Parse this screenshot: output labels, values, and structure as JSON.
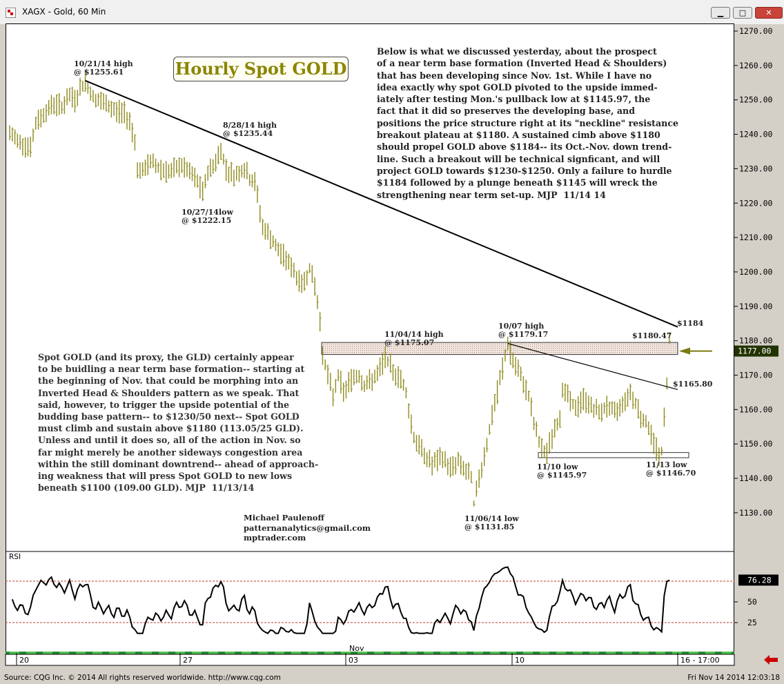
{
  "window": {
    "title": "XAGX - Gold, 60 Min"
  },
  "boxed_title": "Hourly Spot GOLD",
  "notes": {
    "right": [
      "Below is what we discussed yesterday, about the prospect",
      "of a near term base formation (Inverted Head & Shoulders)",
      "that has been developing since Nov. 1st. While I have no",
      "idea exactly why spot GOLD pivoted to the upside immed-",
      "iately after testing Mon.'s pullback low at $1145.97, the",
      "fact that it did so preserves the developing base, and",
      "positions the price structure right at its \"neckline\" resistance",
      "breakout plateau at $1180. A sustained cimb above $1180",
      "should propel GOLD above $1184-- its Oct.-Nov. down trend-",
      "line. Such a breakout will be technical signficant, and will",
      "project GOLD towards $1230-$1250. Only a failure to hurdle",
      "$1184 followed by a plunge beneath $1145 will wreck the",
      "strengthening near term set-up. MJP  11/14 14"
    ],
    "left": [
      "Spot GOLD (and its proxy, the GLD) certainly appear",
      "to be buidling a near term base formation-- starting at",
      "the beginning of Nov. that could be morphing into an",
      "Inverted Head & Shoulders pattern as we speak. That",
      "said, however, to trigger the upside potential of the",
      "budding base pattern-- to $1230/50 next-- Spot GOLD",
      "must climb and sustain above $1180 (113.05/25 GLD).",
      "Unless and until it does so, all of the action in Nov. so",
      "far might merely be another sideways congestion area",
      "within the still dominant downtrend-- ahead of approach-",
      "ing weakness that will press Spot GOLD to new lows",
      "beneath $1100 (109.00 GLD). MJP  11/13/14"
    ]
  },
  "author": {
    "name": "Michael Paulenoff",
    "email": "patternanalytics@gmail.com",
    "site": "mptrader.com"
  },
  "status": {
    "copyright": "Source: CQG Inc. © 2014 All rights reserved worldwide. http://www.cqg.com",
    "timestamp": "Fri Nov 14 2014 12:03:18"
  },
  "colors": {
    "bars": "#8e8a1e",
    "price_box": "#223300",
    "arrow": "#7a7a10",
    "rsi_line": "#000000",
    "rsi_ref": "#c0392b",
    "nav_arrow": "#cc0000"
  },
  "chart_data": [
    {
      "type": "bar",
      "style": "hourly high-low price bars",
      "symbol": "XAGX",
      "interval": "60 Min",
      "ylim": [
        1121,
        1276
      ],
      "yticks": [
        "1270.00",
        "1260.00",
        "1250.00",
        "1240.00",
        "1230.00",
        "1220.00",
        "1210.00",
        "1200.00",
        "1190.00",
        "1180.00",
        "1170.00",
        "1160.00",
        "1150.00",
        "1140.00",
        "1130.00"
      ],
      "last_price": "1177.00",
      "grid": false,
      "path_points": [
        [
          0,
          1240
        ],
        [
          4,
          1238
        ],
        [
          8,
          1236
        ],
        [
          10,
          1243
        ],
        [
          13,
          1246
        ],
        [
          17,
          1249
        ],
        [
          20,
          1248
        ],
        [
          23,
          1251
        ],
        [
          25,
          1250
        ],
        [
          27,
          1253
        ],
        [
          29,
          1255.6
        ],
        [
          31,
          1252
        ],
        [
          33,
          1250
        ],
        [
          36,
          1249
        ],
        [
          40,
          1247
        ],
        [
          44,
          1246
        ],
        [
          46,
          1244
        ],
        [
          48,
          1238
        ],
        [
          49,
          1230
        ],
        [
          51,
          1229
        ],
        [
          54,
          1232
        ],
        [
          58,
          1230
        ],
        [
          62,
          1229
        ],
        [
          66,
          1231
        ],
        [
          70,
          1228
        ],
        [
          72,
          1226
        ],
        [
          74,
          1223
        ],
        [
          76,
          1229
        ],
        [
          79,
          1232
        ],
        [
          81,
          1235.4
        ],
        [
          83,
          1230
        ],
        [
          86,
          1228
        ],
        [
          90,
          1230
        ],
        [
          92,
          1227
        ],
        [
          94,
          1226
        ],
        [
          95,
          1222
        ],
        [
          97,
          1213
        ],
        [
          100,
          1210
        ],
        [
          103,
          1206
        ],
        [
          106,
          1204
        ],
        [
          109,
          1200
        ],
        [
          112,
          1196
        ],
        [
          115,
          1201
        ],
        [
          117,
          1196
        ],
        [
          119,
          1186
        ],
        [
          120,
          1176
        ],
        [
          122,
          1170
        ],
        [
          124,
          1164
        ],
        [
          126,
          1170
        ],
        [
          128,
          1165
        ],
        [
          131,
          1169
        ],
        [
          134,
          1170
        ],
        [
          136,
          1167
        ],
        [
          138,
          1168
        ],
        [
          141,
          1170
        ],
        [
          144,
          1175.1
        ],
        [
          147,
          1171
        ],
        [
          150,
          1169
        ],
        [
          152,
          1165
        ],
        [
          153,
          1160
        ],
        [
          155,
          1152
        ],
        [
          158,
          1148
        ],
        [
          162,
          1144
        ],
        [
          166,
          1146
        ],
        [
          169,
          1143
        ],
        [
          172,
          1145
        ],
        [
          175,
          1142
        ],
        [
          177,
          1140
        ],
        [
          178,
          1131.9
        ],
        [
          180,
          1140
        ],
        [
          183,
          1150
        ],
        [
          185,
          1158
        ],
        [
          187,
          1165
        ],
        [
          189,
          1172
        ],
        [
          191,
          1179.2
        ],
        [
          193,
          1174
        ],
        [
          195,
          1171
        ],
        [
          197,
          1168
        ],
        [
          199,
          1164
        ],
        [
          201,
          1156
        ],
        [
          203,
          1151
        ],
        [
          205,
          1146
        ],
        [
          207,
          1150
        ],
        [
          209,
          1154
        ],
        [
          211,
          1158
        ],
        [
          212,
          1166
        ],
        [
          214,
          1164
        ],
        [
          217,
          1160
        ],
        [
          220,
          1163
        ],
        [
          223,
          1161
        ],
        [
          226,
          1159
        ],
        [
          229,
          1161
        ],
        [
          232,
          1159
        ],
        [
          235,
          1162
        ],
        [
          238,
          1165
        ],
        [
          240,
          1162
        ],
        [
          242,
          1158
        ],
        [
          245,
          1155
        ],
        [
          247,
          1150
        ],
        [
          249,
          1147
        ],
        [
          250,
          1146.7
        ],
        [
          252,
          1168
        ],
        [
          253,
          1180.5
        ]
      ],
      "annotations": [
        {
          "label": "10/21/14 high",
          "sub": "@ $1255.61"
        },
        {
          "label": "8/28/14 high",
          "sub": "@ $1235.44"
        },
        {
          "label": "10/27/14low",
          "sub": "@ $1222.15"
        },
        {
          "label": "11/04/14 high",
          "sub": "@ $1175.07"
        },
        {
          "label": "10/07 high",
          "sub": "@ $1179.17"
        },
        {
          "label": "$1180.47",
          "sub": ""
        },
        {
          "label": "$1184",
          "sub": ""
        },
        {
          "label": "$1165.80",
          "sub": ""
        },
        {
          "label": "11/10 low",
          "sub": "@ $1145.97"
        },
        {
          "label": "11/13 low",
          "sub": "@ $1146.70"
        },
        {
          "label": "11/06/14 low",
          "sub": "@ $1131.85"
        }
      ],
      "trendlines": [
        {
          "name": "Oct.-Nov. down trendline",
          "from": [
            29,
            1255.6
          ],
          "to": [
            253,
            1184
          ]
        },
        {
          "name": "neckline trendline",
          "from": [
            191,
            1179.2
          ],
          "to": [
            253,
            1165.8
          ]
        }
      ],
      "zones": [
        {
          "name": "neckline resistance",
          "y_low": 1176,
          "y_high": 1179.5
        },
        {
          "name": "base support",
          "y_low": 1146,
          "y_high": 1147.5
        }
      ]
    },
    {
      "type": "line",
      "title": "RSI",
      "ylim": [
        0,
        100
      ],
      "yticks": [
        "50",
        "25"
      ],
      "reference_lines": [
        75,
        25
      ],
      "last_value": "76.28",
      "x_labels": [
        "20",
        "27",
        "03",
        "10",
        "16 - 17:00"
      ],
      "month_label": "Nov"
    }
  ]
}
